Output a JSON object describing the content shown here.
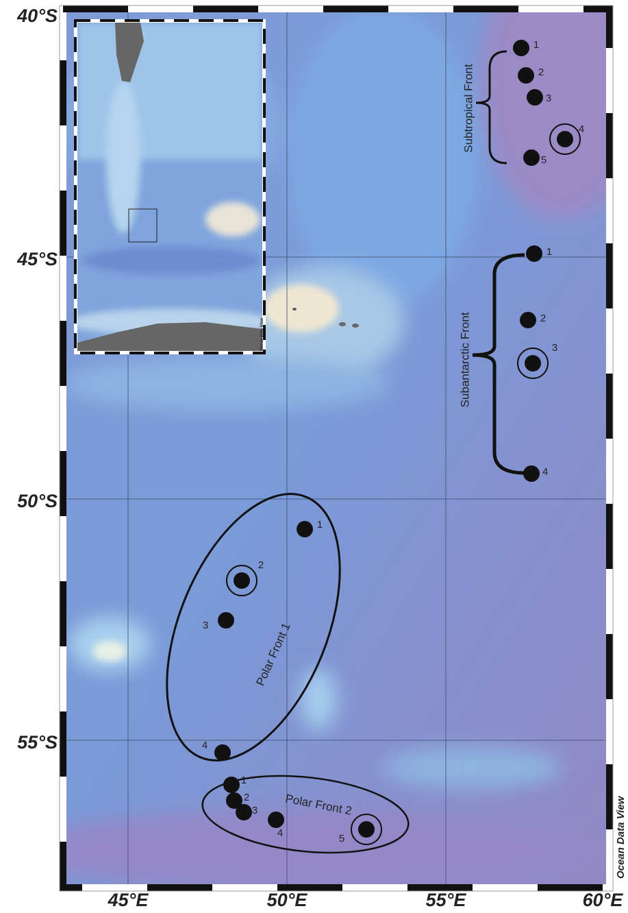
{
  "axes": {
    "lat_labels": [
      "40°S",
      "45°S",
      "50°S",
      "55°S"
    ],
    "lon_labels": [
      "45°E",
      "50°E",
      "55°E",
      "60°E"
    ]
  },
  "watermark": "Ocean Data View",
  "inset": {
    "watermark": "Ocean Data View"
  },
  "fronts": [
    {
      "label": "Subtropical Front",
      "stations": [
        "1",
        "2",
        "3",
        "4",
        "5"
      ]
    },
    {
      "label": "Subantarctic Front",
      "stations": [
        "1",
        "2",
        "3",
        "4"
      ]
    },
    {
      "label": "Polar Front 1",
      "stations": [
        "1",
        "2",
        "3",
        "4"
      ]
    },
    {
      "label": "Polar Front 2",
      "stations": [
        "1",
        "2",
        "3",
        "4",
        "5"
      ]
    }
  ]
}
